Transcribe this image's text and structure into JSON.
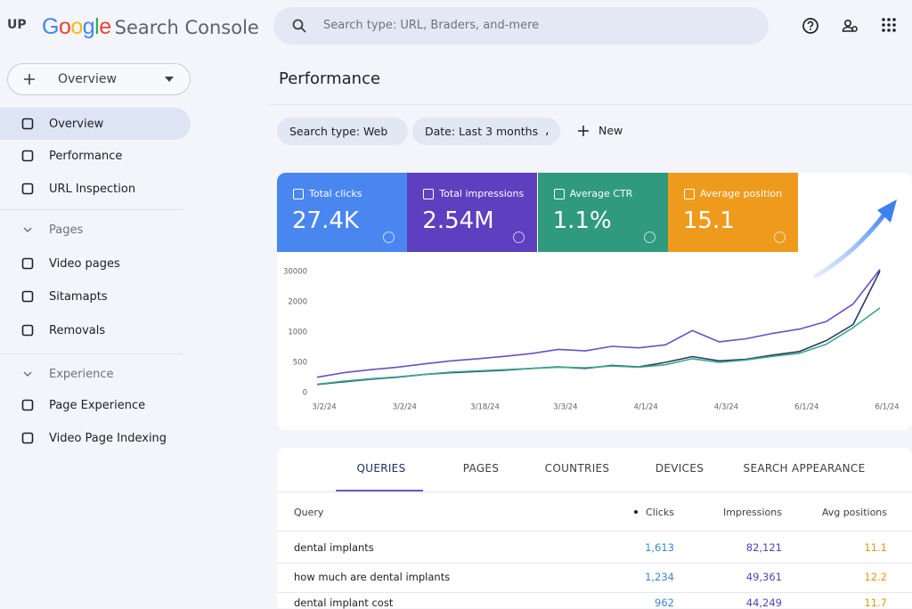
{
  "header": {
    "logo": "UP",
    "google": "Google",
    "product": "Search Console",
    "search_placeholder": "Search type: URL, Braders, and-mere"
  },
  "sidebar": {
    "property": "Overview",
    "items": [
      {
        "label": "Overview",
        "selected": true
      },
      {
        "label": "Performance"
      },
      {
        "label": "URL Inspection"
      },
      {
        "label": "Pages",
        "section": true
      },
      {
        "label": "Video pages"
      },
      {
        "label": "Sitamapts"
      },
      {
        "label": "Removals"
      },
      {
        "label": "Experience",
        "section": true
      },
      {
        "label": "Page Experience"
      },
      {
        "label": "Video Page Indexing"
      }
    ]
  },
  "page_title": "Performance",
  "filters": [
    "Search type: Web",
    "Date: Last 3 months"
  ],
  "new_button": "New",
  "metrics": [
    {
      "label": "Total clicks",
      "value": "27.4K",
      "color": "#4a86f0"
    },
    {
      "label": "Total impressions",
      "value": "2.54M",
      "color": "#5e3fbf"
    },
    {
      "label": "Average CTR",
      "value": "1.1%",
      "color": "#2f9a7d"
    },
    {
      "label": "Average position",
      "value": "15.1",
      "color": "#ee9a1d"
    }
  ],
  "chart_data": {
    "type": "line",
    "categories": [
      "3/2/24",
      null,
      null,
      "3/2/24",
      null,
      null,
      "3/18/24",
      null,
      null,
      "3/3/24",
      null,
      null,
      "4/1/24",
      null,
      null,
      "4/3/24",
      null,
      null,
      "6/1/24",
      null,
      null,
      "6/1/24"
    ],
    "series": [
      {
        "color": "#6a4fc2",
        "values": [
          255,
          330,
          380,
          420,
          475,
          525,
          560,
          600,
          645,
          715,
          690,
          765,
          740,
          790,
          1050,
          840,
          890,
          980,
          1100,
          1350,
          1930,
          32000
        ]
      },
      {
        "color": "#2b3a67",
        "values": [
          135,
          180,
          220,
          255,
          300,
          330,
          350,
          370,
          400,
          425,
          400,
          450,
          425,
          500,
          595,
          525,
          550,
          620,
          680,
          860,
          1250,
          30500
        ]
      },
      {
        "color": "#3aa88f",
        "values": [
          140,
          190,
          230,
          260,
          300,
          340,
          360,
          380,
          400,
          420,
          410,
          440,
          420,
          460,
          560,
          500,
          540,
          600,
          650,
          800,
          1150,
          1800
        ]
      }
    ],
    "ylim": [
      0,
      32000
    ],
    "yticks": [
      0,
      500,
      1000,
      2000,
      30000
    ],
    "grid": false
  },
  "tabs": [
    "QUERIES",
    "PAGES",
    "COUNTRIES",
    "DEVICES",
    "SEARCH APPEARANCE"
  ],
  "table": {
    "columns": [
      "Query",
      "Clicks",
      "Impressions",
      "Avg positions"
    ],
    "rows": [
      [
        "dental implants",
        "1,613",
        "82,121",
        "11.1"
      ],
      [
        "how much are dental implants",
        "1,234",
        "49,361",
        "12.2"
      ],
      [
        "dental implant cost",
        "962",
        "44,249",
        "11.7"
      ]
    ]
  }
}
